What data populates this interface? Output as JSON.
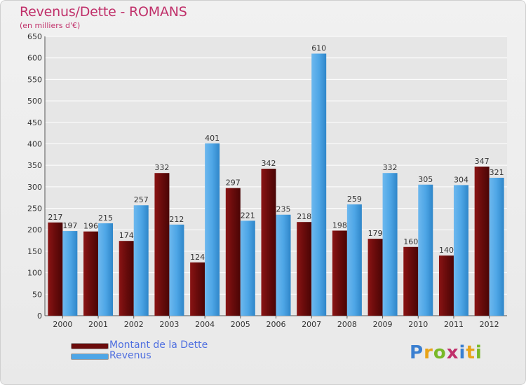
{
  "chart_data": {
    "type": "bar",
    "title": "Revenus/Dette - ROMANS",
    "subtitle": "(en milliers d'€)",
    "xlabel": "",
    "ylabel": "",
    "ylim": [
      0,
      650
    ],
    "yticks": [
      0,
      50,
      100,
      150,
      200,
      250,
      300,
      350,
      400,
      450,
      500,
      550,
      600,
      650
    ],
    "grid": true,
    "legend_position": "bottom-left",
    "categories": [
      "2000",
      "2001",
      "2002",
      "2003",
      "2004",
      "2005",
      "2006",
      "2007",
      "2008",
      "2009",
      "2010",
      "2011",
      "2012"
    ],
    "series": [
      {
        "name": "Montant de la Dette",
        "color": "#6b0c0c",
        "labels": [
          "217",
          "196",
          "174",
          "332",
          "124",
          "297",
          "342",
          "218",
          "198",
          "179",
          "160",
          "140",
          "347"
        ],
        "values": [
          217,
          196,
          174,
          332,
          124,
          297,
          342,
          218,
          198,
          179,
          160,
          140,
          347
        ]
      },
      {
        "name": "Revenus",
        "color": "#4ea6e6",
        "labels": [
          "197",
          "215",
          "257",
          "212",
          "401",
          "221",
          "235",
          "610",
          "259",
          "332",
          "305",
          "304",
          "321"
        ],
        "values": [
          197,
          215,
          257,
          212,
          401,
          221,
          235,
          610,
          259,
          332,
          305,
          304,
          321
        ]
      }
    ]
  },
  "logo": {
    "letters": [
      "P",
      "r",
      "o",
      "x",
      "i",
      "t",
      "i"
    ],
    "colors": [
      "#3a7fd0",
      "#e8a317",
      "#79b928",
      "#c0306a",
      "#3a7fd0",
      "#e8a317",
      "#79b928"
    ]
  }
}
